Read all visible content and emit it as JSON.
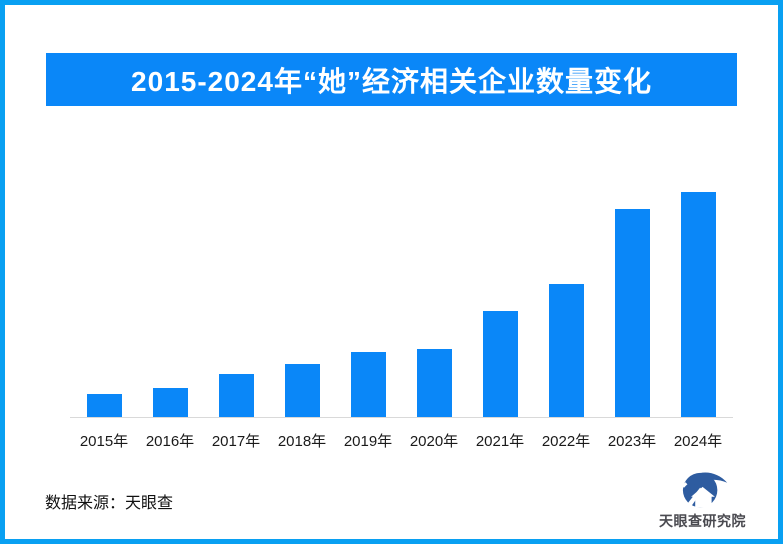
{
  "header": {
    "title": "2015-2024年“她”经济相关企业数量变化"
  },
  "chart_data": {
    "type": "bar",
    "title": "2015-2024年“她”经济相关企业数量变化",
    "categories": [
      "2015年",
      "2016年",
      "2017年",
      "2018年",
      "2019年",
      "2020年",
      "2021年",
      "2022年",
      "2023年",
      "2024年"
    ],
    "values": [
      10,
      13,
      19,
      23.5,
      29,
      30,
      47.3,
      59,
      92.4,
      100
    ],
    "values_unit": "relative index (no numeric axis or data labels shown; heights normalized to 2024 = 100)",
    "xlabel": "",
    "ylabel": "",
    "y_axis_shown": false,
    "gridlines": false,
    "legend": "none",
    "bar_color": "#0A87F8"
  },
  "footer": {
    "source": "数据来源：天眼查",
    "logo_text": "天眼查研究院"
  },
  "colors": {
    "accent": "#0A87F8",
    "border": "#09A0F2",
    "axis": "#D9D9D9",
    "logo_mark": "#2E5CA0",
    "logo_text": "#4A4A50"
  }
}
